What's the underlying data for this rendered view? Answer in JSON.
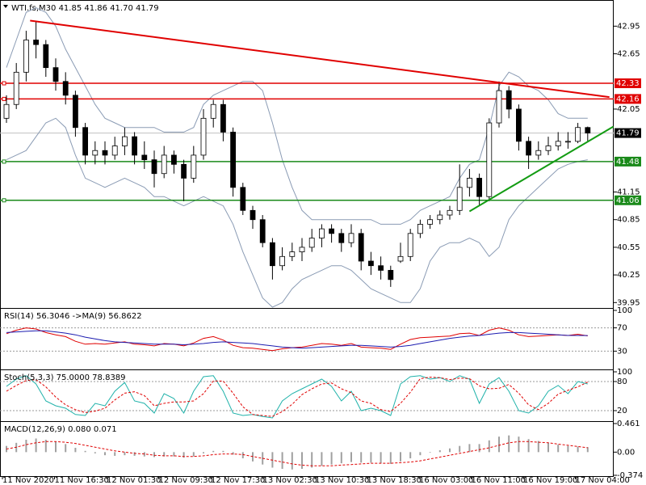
{
  "chart_data": [
    {
      "type": "candlestick",
      "title": "WTI.fs,M30  41.85 41.86 41.70 41.79",
      "candles": [
        [
          41.95,
          42.2,
          41.9,
          42.1
        ],
        [
          42.1,
          42.55,
          42.05,
          42.45
        ],
        [
          42.45,
          42.9,
          42.35,
          42.8
        ],
        [
          42.8,
          43.0,
          42.6,
          42.75
        ],
        [
          42.75,
          42.8,
          42.4,
          42.5
        ],
        [
          42.5,
          42.6,
          42.25,
          42.35
        ],
        [
          42.35,
          42.45,
          42.1,
          42.2
        ],
        [
          42.2,
          42.25,
          41.75,
          41.85
        ],
        [
          41.85,
          41.9,
          41.45,
          41.55
        ],
        [
          41.55,
          41.7,
          41.45,
          41.6
        ],
        [
          41.6,
          41.7,
          41.45,
          41.55
        ],
        [
          41.55,
          41.75,
          41.5,
          41.65
        ],
        [
          41.65,
          41.85,
          41.55,
          41.75
        ],
        [
          41.75,
          41.8,
          41.45,
          41.55
        ],
        [
          41.55,
          41.7,
          41.4,
          41.5
        ],
        [
          41.5,
          41.6,
          41.2,
          41.35
        ],
        [
          41.35,
          41.65,
          41.3,
          41.55
        ],
        [
          41.55,
          41.6,
          41.35,
          41.45
        ],
        [
          41.45,
          41.5,
          41.05,
          41.3
        ],
        [
          41.3,
          41.65,
          41.25,
          41.55
        ],
        [
          41.55,
          42.05,
          41.5,
          41.95
        ],
        [
          41.95,
          42.15,
          41.85,
          42.1
        ],
        [
          42.1,
          42.15,
          41.7,
          41.8
        ],
        [
          41.8,
          41.85,
          41.1,
          41.2
        ],
        [
          41.2,
          41.25,
          40.9,
          40.95
        ],
        [
          40.95,
          41.0,
          40.75,
          40.85
        ],
        [
          40.85,
          40.9,
          40.55,
          40.6
        ],
        [
          40.6,
          40.65,
          40.2,
          40.35
        ],
        [
          40.35,
          40.55,
          40.3,
          40.45
        ],
        [
          40.45,
          40.6,
          40.4,
          40.5
        ],
        [
          40.5,
          40.65,
          40.4,
          40.55
        ],
        [
          40.55,
          40.75,
          40.5,
          40.65
        ],
        [
          40.65,
          40.8,
          40.55,
          40.75
        ],
        [
          40.75,
          40.8,
          40.6,
          40.7
        ],
        [
          40.7,
          40.75,
          40.5,
          40.6
        ],
        [
          40.6,
          40.8,
          40.55,
          40.7
        ],
        [
          40.7,
          40.75,
          40.3,
          40.4
        ],
        [
          40.4,
          40.5,
          40.25,
          40.35
        ],
        [
          40.35,
          40.45,
          40.2,
          40.3
        ],
        [
          40.3,
          40.35,
          40.12,
          40.2
        ],
        [
          40.4,
          40.6,
          40.38,
          40.45
        ],
        [
          40.45,
          40.75,
          40.4,
          40.7
        ],
        [
          40.7,
          40.85,
          40.65,
          40.8
        ],
        [
          40.8,
          40.9,
          40.75,
          40.85
        ],
        [
          40.85,
          40.95,
          40.8,
          40.9
        ],
        [
          40.9,
          41.0,
          40.85,
          40.95
        ],
        [
          40.95,
          41.45,
          40.9,
          41.2
        ],
        [
          41.2,
          41.4,
          41.1,
          41.3
        ],
        [
          41.3,
          41.35,
          41.0,
          41.1
        ],
        [
          41.1,
          41.95,
          41.05,
          41.9
        ],
        [
          41.9,
          42.35,
          41.85,
          42.25
        ],
        [
          42.25,
          42.3,
          41.95,
          42.05
        ],
        [
          42.05,
          42.1,
          41.6,
          41.7
        ],
        [
          41.7,
          41.75,
          41.4,
          41.55
        ],
        [
          41.55,
          41.7,
          41.5,
          41.6
        ],
        [
          41.6,
          41.75,
          41.55,
          41.65
        ],
        [
          41.65,
          41.8,
          41.6,
          41.7
        ],
        [
          41.7,
          41.8,
          41.62,
          41.7
        ],
        [
          41.7,
          41.9,
          41.68,
          41.85
        ],
        [
          41.85,
          41.86,
          41.7,
          41.79
        ]
      ],
      "bands": [
        {
          "color": "#8a9bb4",
          "values": [
            42.5,
            42.8,
            43.1,
            43.15,
            43.1,
            42.95,
            42.7,
            42.5,
            42.3,
            42.1,
            41.95,
            41.9,
            41.85,
            41.85,
            41.85,
            41.85,
            41.8,
            41.8,
            41.8,
            41.85,
            42.1,
            42.2,
            42.25,
            42.3,
            42.35,
            42.35,
            42.25,
            41.9,
            41.5,
            41.2,
            40.95,
            40.85,
            40.85,
            40.85,
            40.85,
            40.85,
            40.85,
            40.85,
            40.8,
            40.8,
            40.8,
            40.85,
            40.95,
            41.0,
            41.05,
            41.1,
            41.3,
            41.45,
            41.5,
            41.85,
            42.3,
            42.45,
            42.4,
            42.3,
            42.25,
            42.15,
            42.0,
            41.95,
            41.95,
            41.95
          ]
        },
        {
          "color": "#8a9bb4",
          "values": [
            41.5,
            41.55,
            41.6,
            41.75,
            41.9,
            41.95,
            41.85,
            41.55,
            41.3,
            41.25,
            41.2,
            41.25,
            41.3,
            41.25,
            41.2,
            41.1,
            41.1,
            41.05,
            41.0,
            41.05,
            41.1,
            41.05,
            41.0,
            40.8,
            40.5,
            40.25,
            40.0,
            39.9,
            39.95,
            40.1,
            40.2,
            40.25,
            40.3,
            40.35,
            40.35,
            40.3,
            40.2,
            40.1,
            40.05,
            40.0,
            39.95,
            39.95,
            40.1,
            40.4,
            40.55,
            40.6,
            40.6,
            40.65,
            40.6,
            40.45,
            40.55,
            40.85,
            41.0,
            41.1,
            41.2,
            41.3,
            41.4,
            41.45,
            41.48,
            41.5
          ]
        }
      ],
      "trendlines": [
        {
          "color": "#e00000",
          "points": [
            [
              2.4,
              43.01
            ],
            [
              61.2,
              42.18
            ]
          ]
        },
        {
          "color": "#139c13",
          "points": [
            [
              47.0,
              40.94
            ],
            [
              61.6,
              41.86
            ]
          ]
        }
      ],
      "levels": [
        {
          "value": 42.33,
          "color": "#e00000"
        },
        {
          "value": 42.16,
          "color": "#e00000"
        },
        {
          "value": 41.48,
          "color": "#1a8a1a"
        },
        {
          "value": 41.06,
          "color": "#1a8a1a"
        }
      ],
      "last_price": 41.79,
      "ylim": [
        39.9,
        43.19
      ],
      "yticks": [
        {
          "value": 42.95,
          "label": "42.95"
        },
        {
          "value": 42.65,
          "label": "42.65"
        },
        {
          "value": 42.05,
          "label": "42.05"
        },
        {
          "value": 41.15,
          "label": "41.15"
        },
        {
          "value": 40.85,
          "label": "40.85"
        },
        {
          "value": 40.55,
          "label": "40.55"
        },
        {
          "value": 40.25,
          "label": "40.25"
        },
        {
          "value": 39.95,
          "label": "39.95"
        }
      ],
      "time_labels": [
        "11 Nov 2020",
        "11 Nov 16:30",
        "12 Nov 01:30",
        "12 Nov 09:30",
        "12 Nov 17:30",
        "13 Nov 02:30",
        "13 Nov 10:30",
        "13 Nov 18:30",
        "16 Nov 03:00",
        "16 Nov 11:00",
        "16 Nov 19:00",
        "17 Nov 04:00"
      ]
    },
    {
      "type": "line",
      "title": "RSI(14) 56.3046  ->MA(9) 56.8622",
      "series": [
        {
          "color": "#e00000",
          "values": [
            60,
            66,
            70,
            68,
            62,
            58,
            55,
            47,
            42,
            43,
            42,
            44,
            46,
            42,
            41,
            39,
            43,
            42,
            39,
            44,
            52,
            55,
            49,
            40,
            36,
            35,
            33,
            31,
            34,
            36,
            37,
            40,
            43,
            42,
            40,
            43,
            37,
            36,
            35,
            33,
            42,
            50,
            53,
            54,
            55,
            56,
            60,
            61,
            57,
            66,
            70,
            66,
            58,
            55,
            56,
            57,
            58,
            57,
            59,
            56.3046
          ]
        },
        {
          "color": "#1c1cb0",
          "values": [
            62,
            63,
            64,
            65,
            65,
            63,
            61,
            58,
            54,
            51,
            48,
            46,
            45,
            44,
            43,
            42,
            42,
            42,
            41,
            42,
            43,
            45,
            46,
            45,
            44,
            43,
            41,
            39,
            37,
            36,
            35,
            36,
            37,
            38,
            39,
            40,
            40,
            39,
            38,
            37,
            38,
            40,
            43,
            46,
            49,
            52,
            54,
            56,
            57,
            59,
            61,
            62,
            62,
            61,
            60,
            59,
            58,
            57,
            57,
            56.8622
          ]
        }
      ],
      "ylim": [
        0,
        100
      ],
      "yticks": [
        100,
        70,
        30
      ],
      "levels": [
        70,
        30
      ]
    },
    {
      "type": "line",
      "title": "Stoch(5,3,3) 75.0000 78.8389",
      "series": [
        {
          "color": "#20b2aa",
          "values": [
            70,
            85,
            92,
            75,
            40,
            30,
            25,
            12,
            10,
            35,
            30,
            60,
            78,
            40,
            35,
            15,
            55,
            45,
            15,
            60,
            90,
            92,
            60,
            15,
            10,
            12,
            8,
            5,
            40,
            55,
            65,
            75,
            85,
            70,
            40,
            60,
            20,
            25,
            20,
            10,
            75,
            90,
            92,
            85,
            88,
            80,
            92,
            85,
            35,
            75,
            88,
            60,
            20,
            15,
            30,
            60,
            72,
            55,
            80,
            75
          ]
        },
        {
          "color": "#e00000",
          "dash": true,
          "values": [
            60,
            72,
            82,
            84,
            69,
            48,
            32,
            22,
            16,
            19,
            25,
            42,
            56,
            59,
            51,
            30,
            35,
            38,
            38,
            40,
            55,
            81,
            81,
            56,
            28,
            12,
            10,
            8,
            18,
            33,
            53,
            65,
            75,
            77,
            65,
            57,
            40,
            35,
            22,
            18,
            35,
            58,
            86,
            89,
            88,
            84,
            87,
            86,
            71,
            65,
            66,
            74,
            56,
            32,
            22,
            35,
            54,
            62,
            69,
            78.8389
          ]
        }
      ],
      "ylim": [
        0,
        100
      ],
      "yticks": [
        100,
        80,
        20
      ],
      "levels": [
        80,
        20
      ]
    },
    {
      "type": "macd",
      "title": "MACD(12,26,9) 0.080 0.071",
      "histogram": {
        "color": "#a0a0a0",
        "values": [
          0.1,
          0.15,
          0.2,
          0.22,
          0.2,
          0.17,
          0.13,
          0.07,
          0.02,
          -0.02,
          -0.05,
          -0.06,
          -0.05,
          -0.06,
          -0.07,
          -0.08,
          -0.07,
          -0.07,
          -0.09,
          -0.07,
          -0.02,
          0.02,
          0.02,
          -0.04,
          -0.1,
          -0.15,
          -0.2,
          -0.25,
          -0.27,
          -0.28,
          -0.27,
          -0.25,
          -0.22,
          -0.2,
          -0.18,
          -0.16,
          -0.17,
          -0.17,
          -0.18,
          -0.19,
          -0.15,
          -0.1,
          -0.05,
          -0.01,
          0.03,
          0.06,
          0.1,
          0.13,
          0.13,
          0.19,
          0.25,
          0.27,
          0.25,
          0.21,
          0.18,
          0.15,
          0.12,
          0.1,
          0.09,
          0.08
        ]
      },
      "signal": {
        "color": "#e00000",
        "dash": true,
        "values": [
          0.05,
          0.08,
          0.12,
          0.15,
          0.17,
          0.17,
          0.16,
          0.14,
          0.11,
          0.08,
          0.05,
          0.02,
          0.0,
          -0.02,
          -0.03,
          -0.05,
          -0.06,
          -0.06,
          -0.07,
          -0.07,
          -0.06,
          -0.04,
          -0.03,
          -0.03,
          -0.04,
          -0.07,
          -0.1,
          -0.13,
          -0.16,
          -0.19,
          -0.21,
          -0.22,
          -0.22,
          -0.22,
          -0.21,
          -0.2,
          -0.19,
          -0.18,
          -0.18,
          -0.18,
          -0.17,
          -0.16,
          -0.14,
          -0.11,
          -0.08,
          -0.05,
          -0.02,
          0.01,
          0.04,
          0.07,
          0.11,
          0.15,
          0.17,
          0.17,
          0.16,
          0.15,
          0.13,
          0.11,
          0.09,
          0.071
        ]
      },
      "ylim": [
        -0.374,
        0.461
      ],
      "yticks": [
        0.461,
        {
          "value": 0,
          "label": "0.00"
        },
        -0.374
      ]
    }
  ]
}
